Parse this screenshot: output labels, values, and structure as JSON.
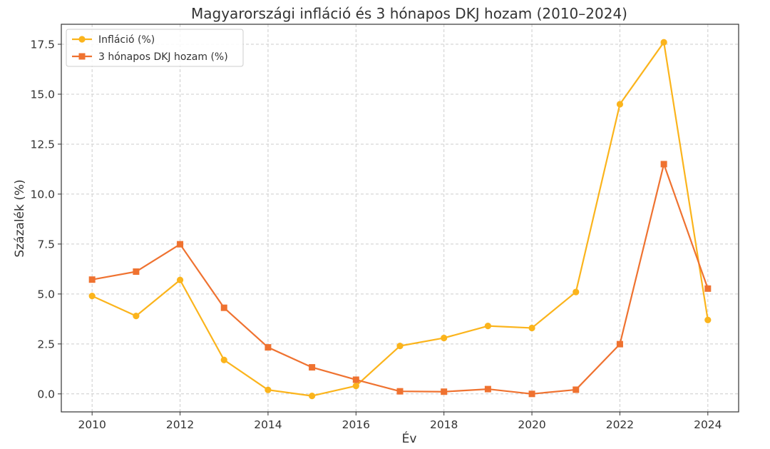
{
  "chart_data": {
    "type": "line",
    "title": "Magyarországi infláció és 3 hónapos DKJ hozam (2010–2024)",
    "xlabel": "Év",
    "ylabel": "Százalék (%)",
    "x": [
      2010,
      2011,
      2012,
      2013,
      2014,
      2015,
      2016,
      2017,
      2018,
      2019,
      2020,
      2021,
      2022,
      2023,
      2024
    ],
    "x_ticks": [
      "2010",
      "2012",
      "2014",
      "2016",
      "2018",
      "2020",
      "2022",
      "2024"
    ],
    "x_tick_values": [
      2010,
      2012,
      2014,
      2016,
      2018,
      2020,
      2022,
      2024
    ],
    "y_ticks": [
      "0.0",
      "2.5",
      "5.0",
      "7.5",
      "10.0",
      "12.5",
      "15.0",
      "17.5"
    ],
    "y_tick_values": [
      0,
      2.5,
      5,
      7.5,
      10,
      12.5,
      15,
      17.5
    ],
    "xlim": [
      2009.3,
      2024.7
    ],
    "ylim": [
      -0.9,
      18.5
    ],
    "grid": true,
    "legend_position": "top-left",
    "series": [
      {
        "name": "Infláció (%)",
        "color": "#fbb41c",
        "marker": "circle",
        "values": [
          4.9,
          3.9,
          5.7,
          1.7,
          0.2,
          -0.1,
          0.4,
          2.4,
          2.8,
          3.4,
          3.3,
          5.1,
          14.5,
          17.6,
          3.7
        ]
      },
      {
        "name": "3 hónapos DKJ hozam (%)",
        "color": "#ef7230",
        "marker": "square",
        "values": [
          5.72,
          6.12,
          7.49,
          4.31,
          2.33,
          1.33,
          0.71,
          0.13,
          0.11,
          0.24,
          0.0,
          0.21,
          2.49,
          11.5,
          5.27
        ]
      }
    ]
  }
}
